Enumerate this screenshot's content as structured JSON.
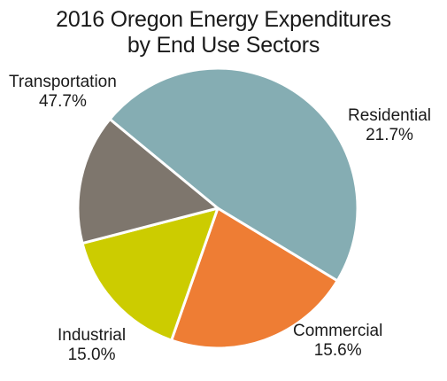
{
  "chart_data": {
    "type": "pie",
    "title": "2016 Oregon Energy Expenditures",
    "subtitle": "by End Use Sectors",
    "slices": [
      {
        "label": "Transportation",
        "value": 47.7,
        "value_text": "47.7%",
        "color": "#85adb3"
      },
      {
        "label": "Residential",
        "value": 21.7,
        "value_text": "21.7%",
        "color": "#ee7d34"
      },
      {
        "label": "Commercial",
        "value": 15.6,
        "value_text": "15.6%",
        "color": "#cccc00"
      },
      {
        "label": "Industrial",
        "value": 15.0,
        "value_text": "15.0%",
        "color": "#7e766d"
      }
    ],
    "start_angle_deg": -140.5,
    "direction": "clockwise",
    "legend": "none",
    "slice_border_color": "#ffffff"
  }
}
